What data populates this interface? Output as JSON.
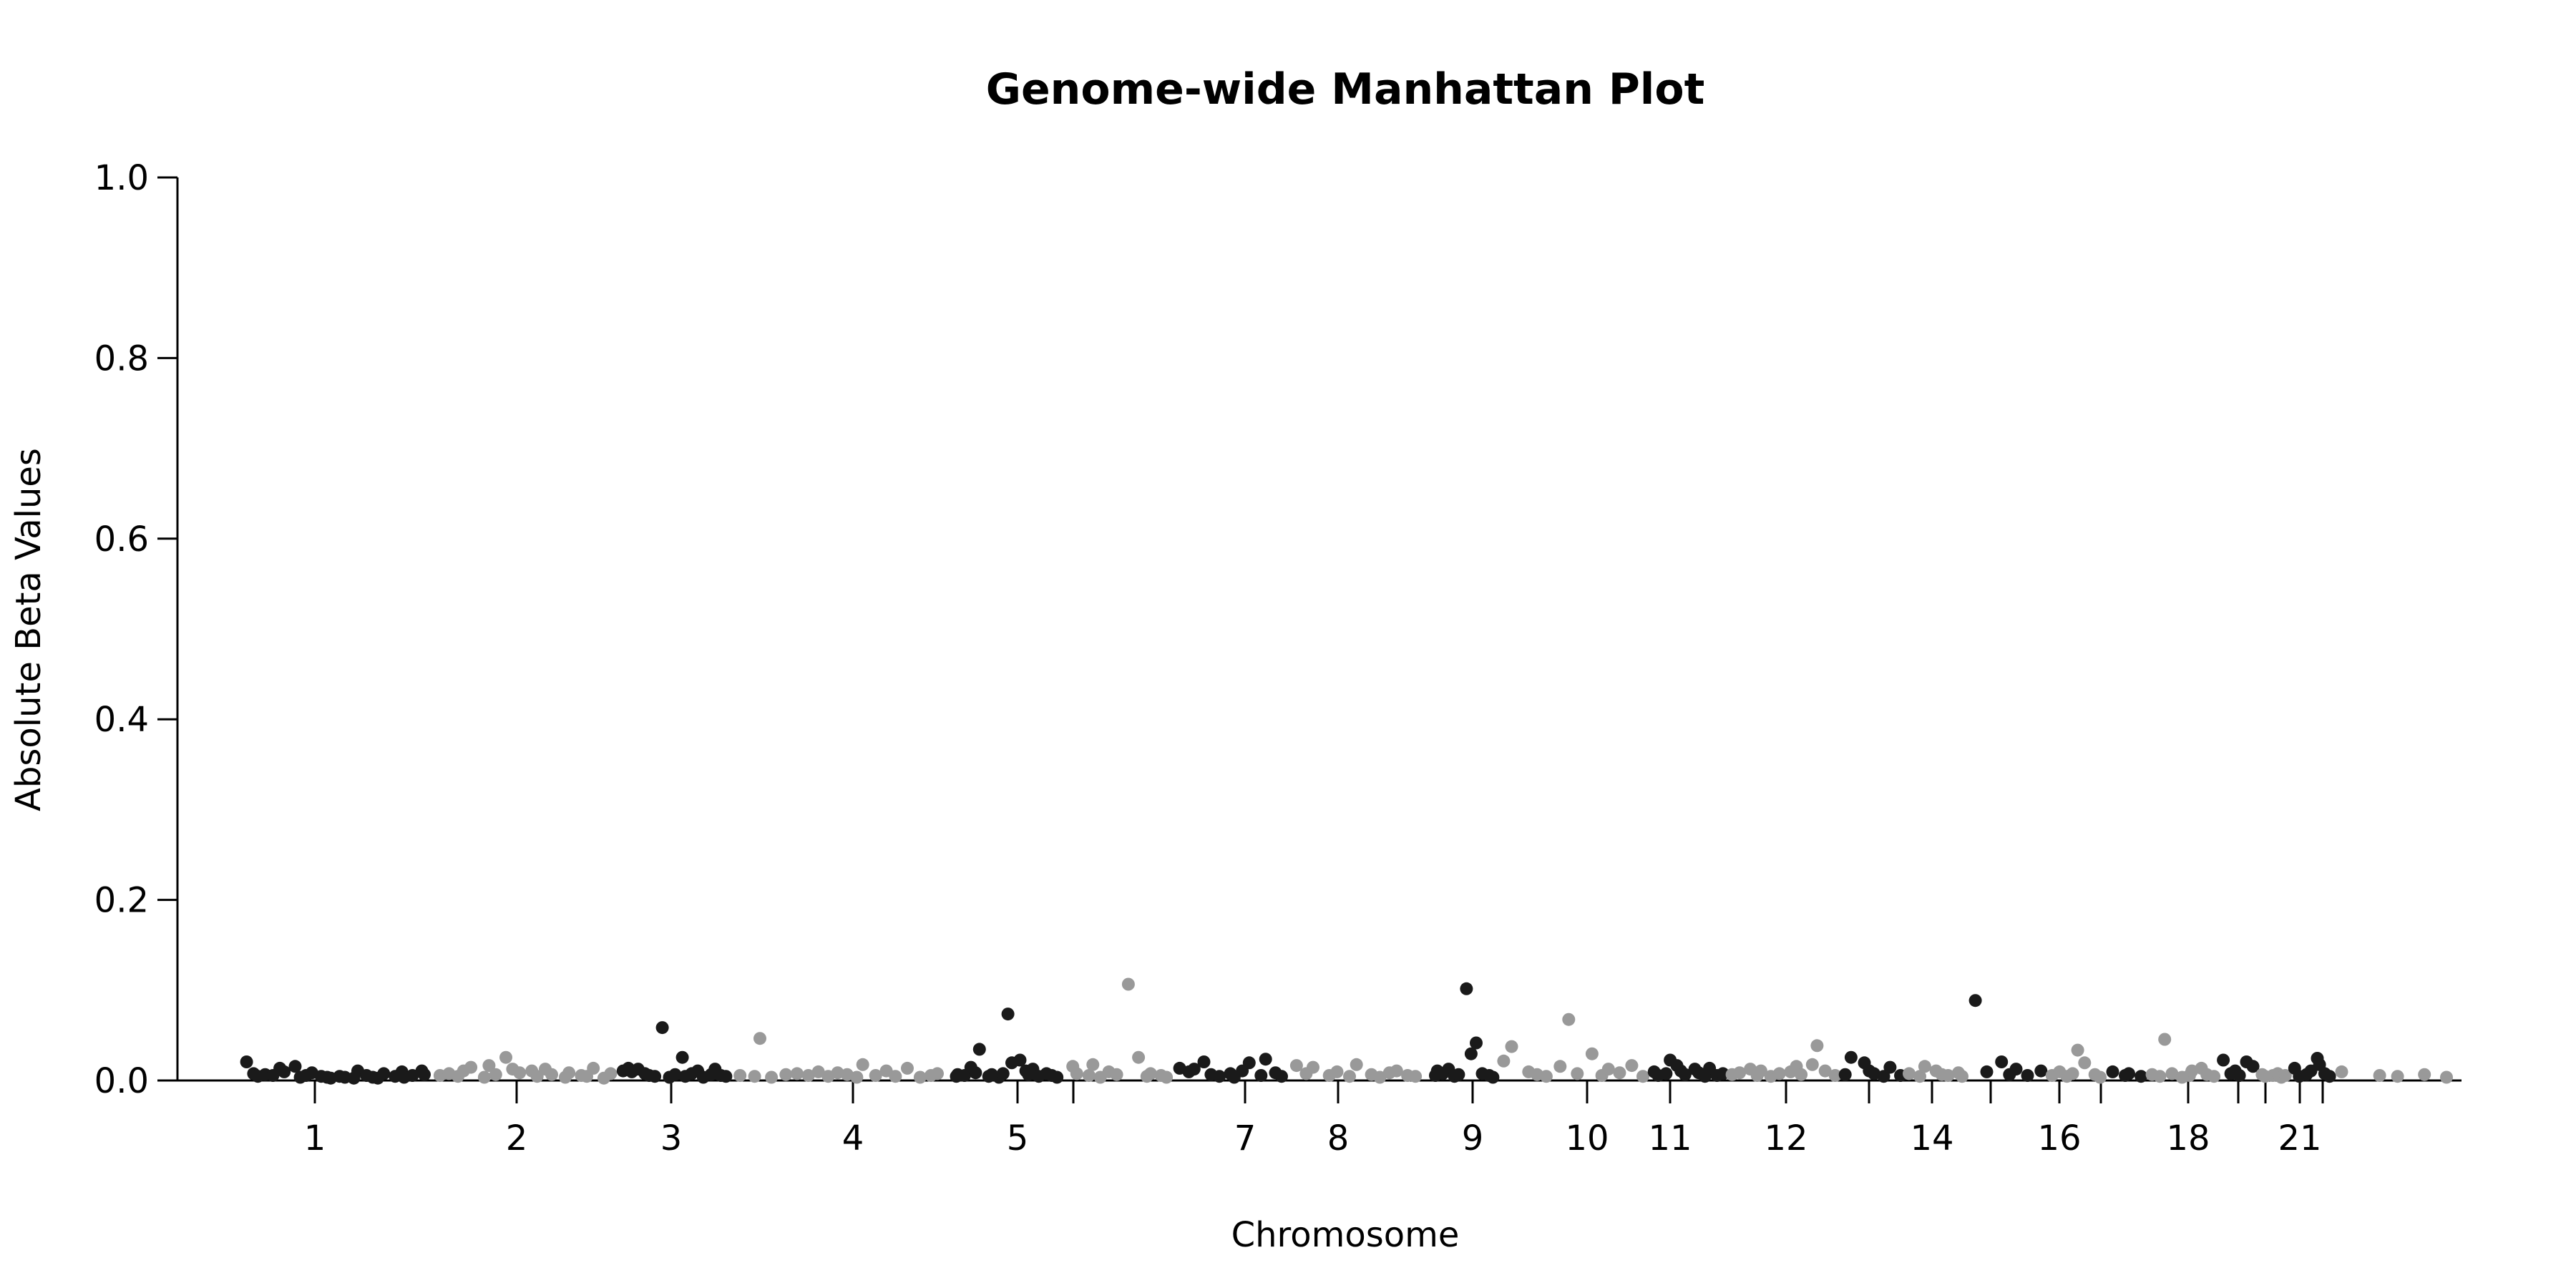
{
  "chart_data": {
    "type": "scatter",
    "title": "Genome-wide Manhattan Plot",
    "xlabel": "Chromosome",
    "ylabel": "Absolute Beta Values",
    "ylim": [
      0,
      1.0
    ],
    "yticks": [
      "0.0",
      "0.2",
      "0.4",
      "0.6",
      "0.8",
      "1.0"
    ],
    "grid": false,
    "legend": "none",
    "colors": {
      "odd": "#1a1a1a",
      "even": "#999999"
    },
    "chromosomes": [
      {
        "label": "1",
        "pos": 1,
        "end": 1,
        "color": "odd"
      },
      {
        "label": "2",
        "pos": 2,
        "end": 2,
        "color": "even"
      },
      {
        "label": "3",
        "pos": 3,
        "end": 3,
        "color": "odd"
      },
      {
        "label": "4",
        "pos": 4,
        "end": 4,
        "color": "even"
      },
      {
        "label": "5",
        "pos": 5,
        "end": 5,
        "color": "odd"
      },
      {
        "label": "",
        "pos": 6,
        "end": 6,
        "color": "even"
      },
      {
        "label": "7",
        "pos": 7,
        "end": 7,
        "color": "odd"
      },
      {
        "label": "8",
        "pos": 8,
        "end": 8,
        "color": "even"
      },
      {
        "label": "9",
        "pos": 9,
        "end": 9,
        "color": "odd"
      },
      {
        "label": "10",
        "pos": 10,
        "end": 10,
        "color": "even"
      },
      {
        "label": "11",
        "pos": 11,
        "end": 11,
        "color": "odd"
      },
      {
        "label": "12",
        "pos": 12,
        "end": 12,
        "color": "even"
      },
      {
        "label": "",
        "pos": 13,
        "end": 13,
        "color": "odd"
      },
      {
        "label": "14",
        "pos": 14,
        "end": 14,
        "color": "even"
      },
      {
        "label": "",
        "pos": 15,
        "end": 15,
        "color": "odd"
      },
      {
        "label": "16",
        "pos": 16,
        "end": 16,
        "color": "even"
      },
      {
        "label": "",
        "pos": 17,
        "end": 17,
        "color": "odd"
      },
      {
        "label": "18",
        "pos": 18,
        "end": 18,
        "color": "even"
      },
      {
        "label": "",
        "pos": 19,
        "end": 19,
        "color": "odd"
      },
      {
        "label": "",
        "pos": 20,
        "end": 20,
        "color": "even"
      },
      {
        "label": "21",
        "pos": 21,
        "end": 21,
        "color": "odd"
      },
      {
        "label": "",
        "pos": 22,
        "end": 22,
        "color": "even"
      }
    ],
    "points": [
      {
        "chr": 1,
        "values": [
          0.019,
          0.006,
          0.003,
          0.005,
          0.004,
          0.012,
          0.008,
          0.014,
          0.002,
          0.004,
          0.007,
          0.003,
          0.002,
          0.001,
          0.003,
          0.002,
          0.001,
          0.009,
          0.004,
          0.002,
          0.001,
          0.006,
          0.003,
          0.008,
          0.002,
          0.004,
          0.009,
          0.005
        ]
      },
      {
        "chr": 2,
        "values": [
          0.004,
          0.006,
          0.003,
          0.009,
          0.013,
          0.002,
          0.015,
          0.005,
          0.024,
          0.011,
          0.007,
          0.009,
          0.003,
          0.011,
          0.005,
          0.002,
          0.007,
          0.004,
          0.003,
          0.012,
          0.001,
          0.006
        ]
      },
      {
        "chr": 3,
        "values": [
          0.009,
          0.012,
          0.008,
          0.011,
          0.006,
          0.004,
          0.003,
          0.057,
          0.002,
          0.005,
          0.024,
          0.003,
          0.006,
          0.009,
          0.002,
          0.005,
          0.011,
          0.004,
          0.003
        ]
      },
      {
        "chr": 4,
        "values": [
          0.004,
          0.003,
          0.045,
          0.002,
          0.005,
          0.006,
          0.004,
          0.008,
          0.003,
          0.007,
          0.005,
          0.002,
          0.016,
          0.004,
          0.009,
          0.003,
          0.012,
          0.002,
          0.004,
          0.006
        ]
      },
      {
        "chr": 5,
        "values": [
          0.003,
          0.005,
          0.004,
          0.013,
          0.007,
          0.033,
          0.003,
          0.005,
          0.002,
          0.006,
          0.072,
          0.018,
          0.021,
          0.009,
          0.005,
          0.011,
          0.003,
          0.006,
          0.004,
          0.002
        ]
      },
      {
        "chr": 6,
        "values": [
          0.014,
          0.006,
          0.004,
          0.016,
          0.002,
          0.008,
          0.005,
          0.105,
          0.024,
          0.003,
          0.006,
          0.004,
          0.002
        ]
      },
      {
        "chr": 7,
        "values": [
          0.012,
          0.008,
          0.011,
          0.019,
          0.005,
          0.003,
          0.006,
          0.002,
          0.009,
          0.018,
          0.004,
          0.022,
          0.007,
          0.003
        ]
      },
      {
        "chr": 8,
        "values": [
          0.015,
          0.006,
          0.013,
          0.004,
          0.008,
          0.003,
          0.016,
          0.005,
          0.002,
          0.007,
          0.009,
          0.004,
          0.003
        ]
      },
      {
        "chr": 9,
        "values": [
          0.004,
          0.009,
          0.006,
          0.011,
          0.003,
          0.005,
          0.1,
          0.028,
          0.04,
          0.006,
          0.004,
          0.002
        ]
      },
      {
        "chr": 10,
        "values": [
          0.02,
          0.036,
          0.008,
          0.005,
          0.003,
          0.014,
          0.066,
          0.006,
          0.028,
          0.004,
          0.011,
          0.007,
          0.015,
          0.003
        ]
      },
      {
        "chr": 11,
        "values": [
          0.008,
          0.004,
          0.006,
          0.021,
          0.015,
          0.009,
          0.005,
          0.011,
          0.007,
          0.003,
          0.012,
          0.004,
          0.006
        ]
      },
      {
        "chr": 12,
        "values": [
          0.005,
          0.007,
          0.011,
          0.004,
          0.009,
          0.003,
          0.006,
          0.008,
          0.014,
          0.005,
          0.016,
          0.037,
          0.009,
          0.004
        ]
      },
      {
        "chr": 13,
        "values": [
          0.005,
          0.024,
          0.018,
          0.009,
          0.006,
          0.003,
          0.013,
          0.004
        ]
      },
      {
        "chr": 14,
        "values": [
          0.006,
          0.003,
          0.014,
          0.009,
          0.005,
          0.004,
          0.007,
          0.003
        ]
      },
      {
        "chr": 15,
        "values": [
          0.087,
          0.008,
          0.019,
          0.005,
          0.011,
          0.004,
          0.009
        ]
      },
      {
        "chr": 16,
        "values": [
          0.004,
          0.008,
          0.003,
          0.006,
          0.032,
          0.018,
          0.005,
          0.002
        ]
      },
      {
        "chr": 17,
        "values": [
          0.008,
          0.004,
          0.006,
          0.003
        ]
      },
      {
        "chr": 18,
        "values": [
          0.005,
          0.003,
          0.044,
          0.006,
          0.002,
          0.004,
          0.009,
          0.012,
          0.005,
          0.003
        ]
      },
      {
        "chr": 19,
        "values": [
          0.021,
          0.006,
          0.009,
          0.004,
          0.019,
          0.014
        ]
      },
      {
        "chr": 20,
        "values": [
          0.005,
          0.003,
          0.004,
          0.006,
          0.002,
          0.004
        ]
      },
      {
        "chr": 21,
        "values": [
          0.012,
          0.003,
          0.005,
          0.009,
          0.023,
          0.016,
          0.006,
          0.003
        ]
      },
      {
        "chr": 22,
        "values": [
          0.008,
          0.004,
          0.003,
          0.005,
          0.002
        ]
      }
    ]
  }
}
